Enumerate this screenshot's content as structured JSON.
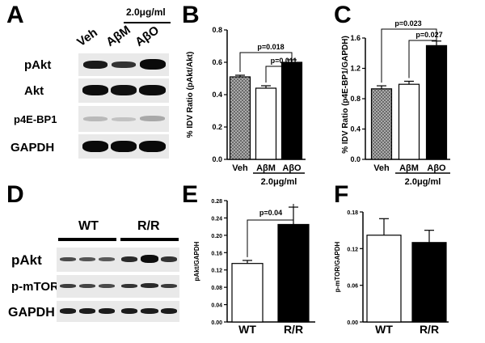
{
  "panels": {
    "A": "A",
    "B": "B",
    "C": "C",
    "D": "D",
    "E": "E",
    "F": "F"
  },
  "blot_A": {
    "dose_label": "2.0μg/ml",
    "lanes": [
      "Veh",
      "AβM",
      "AβO"
    ],
    "rows": [
      "pAkt",
      "Akt",
      "p4E-BP1",
      "GAPDH"
    ]
  },
  "blot_D": {
    "groups": [
      "WT",
      "R/R"
    ],
    "rows": [
      "pAkt",
      "p-mTOR",
      "GAPDH"
    ]
  },
  "chart_data": [
    {
      "panel": "B",
      "type": "bar",
      "categories": [
        "Veh",
        "AβM",
        "AβO"
      ],
      "values": [
        0.51,
        0.44,
        0.6
      ],
      "errors": [
        0.01,
        0.015,
        0.015
      ],
      "fills": [
        "hatched",
        "#ffffff",
        "#000000"
      ],
      "ylabel": "% IDV Ratio (pAkt/Akt)",
      "xgroup_label": "2.0μg/ml",
      "ylim": [
        0,
        0.8
      ],
      "yticks": [
        "0.0",
        "0.2",
        "0.4",
        "0.6",
        "0.8"
      ],
      "ytick_values": [
        0,
        0.2,
        0.4,
        0.6,
        0.8
      ],
      "annotations": [
        "p=0.018",
        "p=0.011"
      ]
    },
    {
      "panel": "C",
      "type": "bar",
      "categories": [
        "Veh",
        "AβM",
        "AβO"
      ],
      "values": [
        0.93,
        0.99,
        1.5
      ],
      "errors": [
        0.04,
        0.04,
        0.06
      ],
      "fills": [
        "hatched",
        "#ffffff",
        "#000000"
      ],
      "ylabel": "% IDV Ratio (p4E-BP1/GAPDH)",
      "xgroup_label": "2.0μg/ml",
      "ylim": [
        0,
        1.6
      ],
      "yticks": [
        "0.0",
        "0.4",
        "0.8",
        "1.2",
        "1.6"
      ],
      "ytick_values": [
        0,
        0.4,
        0.8,
        1.2,
        1.6
      ],
      "annotations": [
        "p=0.023",
        "p=0.027"
      ]
    },
    {
      "panel": "E",
      "type": "bar",
      "categories": [
        "WT",
        "R/R"
      ],
      "values": [
        0.135,
        0.225
      ],
      "errors": [
        0.007,
        0.04
      ],
      "fills": [
        "#ffffff",
        "#000000"
      ],
      "ylabel": "pAkt/GAPDH",
      "ylim": [
        0,
        0.28
      ],
      "yticks": [
        "0.00",
        "0.04",
        "0.08",
        "0.12",
        "0.16",
        "0.20",
        "0.24",
        "0.28"
      ],
      "ytick_values": [
        0,
        0.04,
        0.08,
        0.12,
        0.16,
        0.2,
        0.24,
        0.28
      ],
      "annotations": [
        "p=0.04"
      ]
    },
    {
      "panel": "F",
      "type": "bar",
      "categories": [
        "WT",
        "R/R"
      ],
      "values": [
        0.142,
        0.13
      ],
      "errors": [
        0.027,
        0.02
      ],
      "fills": [
        "#ffffff",
        "#000000"
      ],
      "ylabel": "p-mTOR/GAPDH",
      "ylim": [
        0,
        0.18
      ],
      "yticks": [
        "0.00",
        "0.06",
        "0.12",
        "0.18"
      ],
      "ytick_values": [
        0,
        0.06,
        0.12,
        0.18
      ],
      "annotations": []
    }
  ]
}
